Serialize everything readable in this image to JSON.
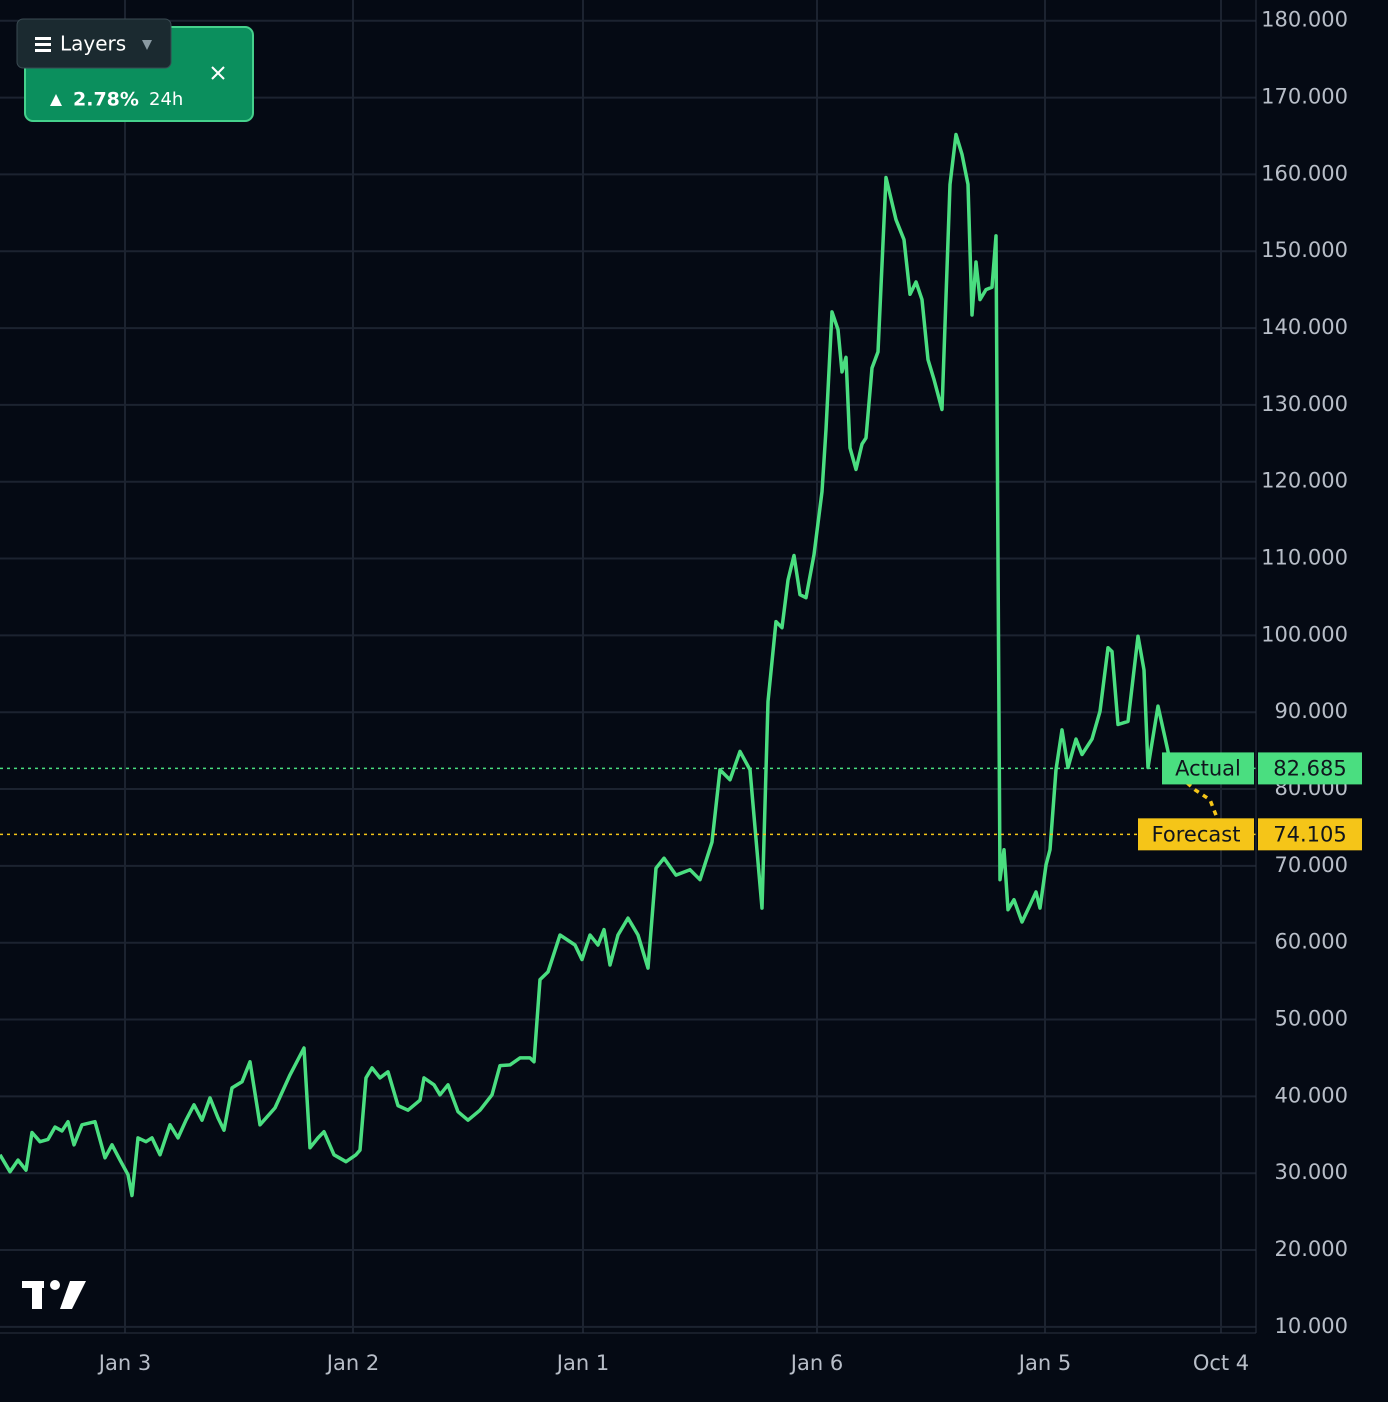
{
  "chart_data": {
    "type": "line",
    "x": [
      0,
      10,
      18,
      26,
      32,
      40,
      48,
      55,
      62,
      68,
      74,
      82,
      95,
      105,
      112,
      120,
      128,
      132,
      138,
      146,
      152,
      160,
      170,
      178,
      186,
      194,
      202,
      210,
      218,
      224,
      232,
      242,
      250,
      260,
      275,
      290,
      304,
      310,
      318,
      324,
      334,
      346,
      356,
      360,
      366,
      372,
      380,
      388,
      398,
      408,
      420,
      424,
      434,
      440,
      448,
      458,
      468,
      480,
      492,
      500,
      510,
      520,
      530,
      534,
      540,
      548,
      560,
      575,
      582,
      590,
      598,
      604,
      610,
      618,
      628,
      638,
      648,
      656,
      664,
      676,
      690,
      700,
      712,
      720,
      730,
      740,
      750,
      762,
      768,
      776,
      782,
      788,
      794,
      800,
      806,
      814,
      822,
      826,
      832,
      838,
      842,
      846,
      850,
      856,
      862,
      866,
      872,
      878,
      886,
      896,
      904,
      910,
      916,
      922,
      928,
      934,
      942,
      950,
      956,
      962,
      968,
      972,
      976,
      980,
      986,
      992,
      996,
      1000,
      1004,
      1008,
      1014,
      1022,
      1030,
      1036,
      1040,
      1046,
      1050,
      1056,
      1062,
      1068,
      1076,
      1082,
      1092,
      1100,
      1108,
      1112,
      1118,
      1128,
      1138,
      1144,
      1148,
      1158,
      1165,
      1172
    ],
    "series": [
      {
        "name": "Actual",
        "color": "#4ade80",
        "values": [
          32.4,
          30.2,
          31.7,
          30.4,
          35.3,
          34.1,
          34.4,
          36,
          35.5,
          36.7,
          33.7,
          36.3,
          36.7,
          32,
          33.7,
          31.7,
          29.8,
          27.1,
          34.6,
          34.1,
          34.6,
          32.4,
          36.3,
          34.6,
          36.9,
          38.9,
          36.9,
          39.8,
          37.2,
          35.6,
          41.1,
          41.9,
          44.5,
          36.3,
          38.5,
          42.8,
          46.3,
          33.3,
          34.6,
          35.4,
          32.4,
          31.5,
          32.4,
          33,
          42.4,
          43.7,
          42.4,
          43.2,
          38.8,
          38.2,
          39.5,
          42.4,
          41.5,
          40.2,
          41.5,
          38,
          36.9,
          38.2,
          40.2,
          44,
          44.1,
          45,
          45,
          44.5,
          55.2,
          56.2,
          61,
          59.7,
          57.8,
          61,
          59.7,
          61.7,
          57.1,
          61,
          63.2,
          61,
          56.7,
          69.7,
          71,
          68.8,
          69.5,
          68.2,
          73.1,
          82.5,
          81.2,
          84.9,
          82.5,
          64.5,
          91.4,
          101.8,
          101,
          107.2,
          110.4,
          105.3,
          104.9,
          110.5,
          118.7,
          126.8,
          142.1,
          139.8,
          134.3,
          136.2,
          124.4,
          121.6,
          124.9,
          125.7,
          134.8,
          136.9,
          159.6,
          154.1,
          151.5,
          144.4,
          146,
          143.7,
          135.9,
          133.3,
          129.4,
          158.7,
          165.2,
          162.6,
          158.7,
          141.7,
          148.6,
          143.7,
          145,
          145.3,
          152,
          68.2,
          72.1,
          64.3,
          65.6,
          62.7,
          64.9,
          66.6,
          64.5,
          70.1,
          72.1,
          82.5,
          87.7,
          82.8,
          86.5,
          84.5,
          86.5,
          90.1,
          98.4,
          97.9,
          88.4,
          88.8,
          99.9,
          95.5,
          82.8,
          90.8,
          86.7,
          82.5
        ]
      },
      {
        "name": "Forecast",
        "color": "#f5c518",
        "dashed": true,
        "x": [
          1172,
          1195,
          1210,
          1216
        ],
        "values": [
          82.5,
          79.9,
          78.6,
          76.6
        ]
      }
    ],
    "price_lines": [
      {
        "label": "Actual",
        "value": 82.685,
        "value_label": "82.685",
        "color": "#4ade80"
      },
      {
        "label": "Forecast",
        "value": 74.105,
        "value_label": "74.105",
        "color": "#f5c518"
      }
    ],
    "xlim": [
      0,
      1256
    ],
    "xticks": [
      {
        "value": 125,
        "label": "Jan 3"
      },
      {
        "value": 353,
        "label": "Jan 2"
      },
      {
        "value": 583,
        "label": "Jan 1"
      },
      {
        "value": 817,
        "label": "Jan 6"
      },
      {
        "value": 1045,
        "label": "Jan 5"
      },
      {
        "value": 1221,
        "label": "Oct 4"
      }
    ],
    "ylim": [
      9.2,
      182.7
    ],
    "yticks": [
      {
        "value": 10,
        "label": "10.000"
      },
      {
        "value": 20,
        "label": "20.000"
      },
      {
        "value": 30,
        "label": "30.000"
      },
      {
        "value": 40,
        "label": "40.000"
      },
      {
        "value": 50,
        "label": "50.000"
      },
      {
        "value": 60,
        "label": "60.000"
      },
      {
        "value": 70,
        "label": "70.000"
      },
      {
        "value": 80,
        "label": "80.000"
      },
      {
        "value": 90,
        "label": "90.000"
      },
      {
        "value": 100,
        "label": "100.000"
      },
      {
        "value": 110,
        "label": "110.000"
      },
      {
        "value": 120,
        "label": "120.000"
      },
      {
        "value": 130,
        "label": "130.000"
      },
      {
        "value": 140,
        "label": "140.000"
      },
      {
        "value": 150,
        "label": "150.000"
      },
      {
        "value": 160,
        "label": "160.000"
      },
      {
        "value": 170,
        "label": "170.000"
      },
      {
        "value": 180,
        "label": "180.000"
      }
    ],
    "grid": true
  },
  "widget": {
    "menu_label": "Layers",
    "change": "2.78%",
    "period": "24h"
  }
}
